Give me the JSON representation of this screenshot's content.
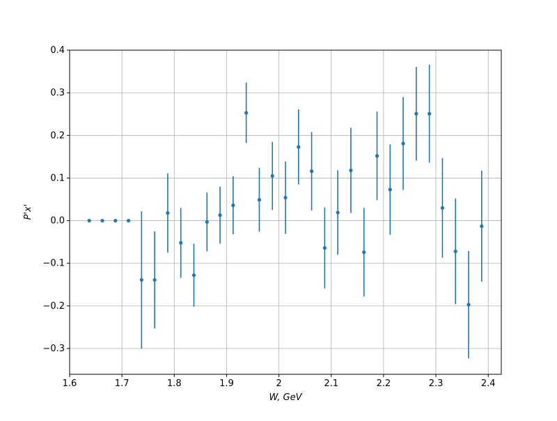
{
  "chart_data": {
    "type": "errorbar",
    "xlabel": "W, GeV",
    "ylabel": "P'x'",
    "x": [
      1.6375,
      1.6625,
      1.6875,
      1.7125,
      1.7375,
      1.7625,
      1.7875,
      1.8125,
      1.8375,
      1.8625,
      1.8875,
      1.9125,
      1.9375,
      1.9625,
      1.9875,
      2.0125,
      2.0375,
      2.0625,
      2.0875,
      2.1125,
      2.1375,
      2.1625,
      2.1875,
      2.2125,
      2.2375,
      2.2625,
      2.2875,
      2.3125,
      2.3375,
      2.3625,
      2.3875
    ],
    "series": [
      {
        "color": "#1f77b4",
        "values": [
          0,
          0,
          0,
          0,
          -0.139,
          -0.139,
          0.018,
          -0.052,
          -0.128,
          -0.003,
          0.013,
          0.036,
          0.253,
          0.049,
          0.105,
          0.054,
          0.173,
          0.116,
          -0.064,
          0.019,
          0.118,
          -0.074,
          0.152,
          0.073,
          0.181,
          0.251,
          0.251,
          0.03,
          -0.072,
          -0.197,
          -0.013
        ],
        "errors": [
          0,
          0,
          0,
          0,
          0.161,
          0.114,
          0.093,
          0.082,
          0.074,
          0.069,
          0.067,
          0.068,
          0.071,
          0.075,
          0.08,
          0.085,
          0.088,
          0.092,
          0.095,
          0.099,
          0.1,
          0.104,
          0.104,
          0.106,
          0.109,
          0.11,
          0.115,
          0.117,
          0.124,
          0.126,
          0.13
        ]
      }
    ],
    "xlim": [
      1.6,
      2.425
    ],
    "ylim": [
      -0.3605,
      0.4
    ],
    "xticks": [
      1.6,
      1.7,
      1.8,
      1.9,
      2.0,
      2.1,
      2.2,
      2.3,
      2.4
    ],
    "yticks": [
      {
        "value": -0.3,
        "label": "−0.3"
      },
      {
        "value": -0.2,
        "label": "−0.2"
      },
      {
        "value": -0.1,
        "label": "−0.1"
      },
      {
        "value": 0,
        "label": "0.0"
      },
      0.1,
      0.2,
      0.3,
      0.4
    ],
    "grid": true
  }
}
